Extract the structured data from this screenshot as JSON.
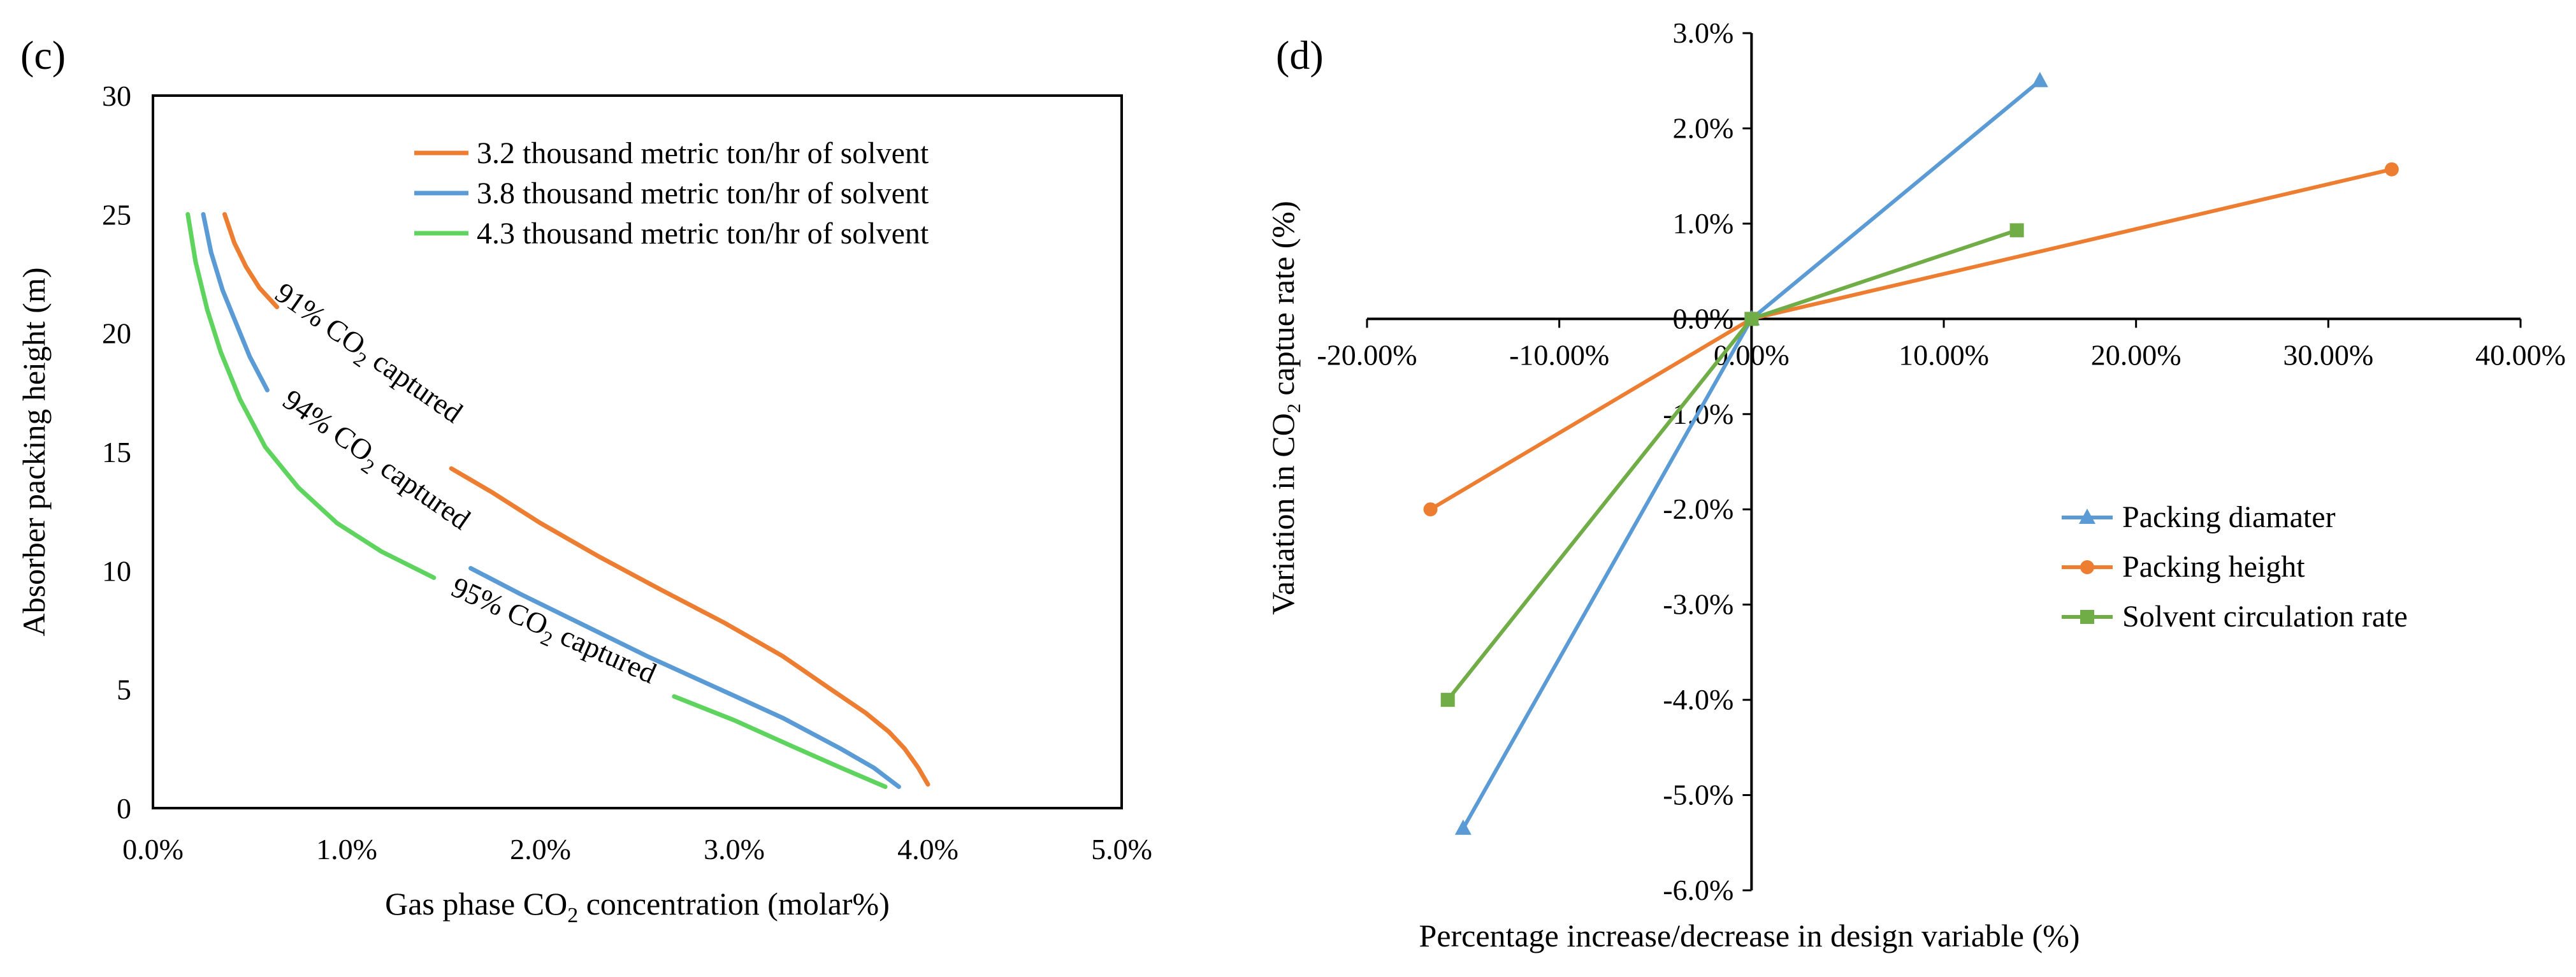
{
  "chart_data": [
    {
      "id": "c",
      "type": "line",
      "panel_label": "(c)",
      "xlabel_pre": "Gas phase CO",
      "xlabel_sub": "2",
      "xlabel_post": " concentration (molar%)",
      "ylabel": "Absorber packing height (m)",
      "xlim": [
        0,
        5
      ],
      "ylim": [
        0,
        30
      ],
      "x_ticks": [
        0,
        1,
        2,
        3,
        4,
        5
      ],
      "x_tick_labels": [
        "0.0%",
        "1.0%",
        "2.0%",
        "3.0%",
        "4.0%",
        "5.0%"
      ],
      "y_ticks": [
        0,
        5,
        10,
        15,
        20,
        25,
        30
      ],
      "y_tick_labels": [
        "0",
        "5",
        "10",
        "15",
        "20",
        "25",
        "30"
      ],
      "legend_position": "top-right",
      "series": [
        {
          "name": "3.2 thousand metric ton/hr of solvent",
          "color": "#ED7D31",
          "x": [
            0.37,
            0.42,
            0.48,
            0.55,
            0.64
          ],
          "y": [
            25.0,
            23.8,
            22.8,
            21.9,
            21.1
          ],
          "x2": [
            1.54,
            1.75,
            2.0,
            2.3,
            2.62,
            2.95,
            3.25,
            3.5,
            3.68,
            3.8,
            3.88,
            3.95,
            4.0
          ],
          "y2": [
            14.3,
            13.3,
            12.0,
            10.6,
            9.2,
            7.8,
            6.4,
            5.0,
            4.0,
            3.2,
            2.5,
            1.7,
            1.0
          ]
        },
        {
          "name": "3.8 thousand metric ton/hr of solvent",
          "color": "#5B9BD5",
          "x": [
            0.26,
            0.3,
            0.36,
            0.43,
            0.5,
            0.59
          ],
          "y": [
            25.0,
            23.4,
            21.8,
            20.4,
            19.0,
            17.6
          ],
          "x2": [
            1.64,
            1.9,
            2.2,
            2.55,
            2.9,
            3.25,
            3.55,
            3.72,
            3.85
          ],
          "y2": [
            10.1,
            9.0,
            7.8,
            6.4,
            5.1,
            3.8,
            2.5,
            1.7,
            0.9
          ]
        },
        {
          "name": "4.3 thousand metric ton/hr of solvent",
          "color": "#5ED35E",
          "x": [
            0.18,
            0.22,
            0.28,
            0.35,
            0.45,
            0.58,
            0.75,
            0.95,
            1.18,
            1.45
          ],
          "y": [
            25.0,
            23.0,
            21.0,
            19.2,
            17.2,
            15.2,
            13.5,
            12.0,
            10.8,
            9.7
          ],
          "x2": [
            2.69,
            3.0,
            3.3,
            3.55,
            3.78
          ],
          "y2": [
            4.7,
            3.7,
            2.6,
            1.7,
            0.9
          ]
        }
      ],
      "annotations": [
        {
          "pre": "91% CO",
          "sub": "2",
          "post": " captured",
          "x": 0.62,
          "y": 21.5,
          "angle": 35
        },
        {
          "pre": "94% CO",
          "sub": "2",
          "post": " captured",
          "x": 0.66,
          "y": 17.0,
          "angle": 35
        },
        {
          "pre": "95% CO",
          "sub": "2",
          "post": " captured",
          "x": 1.53,
          "y": 9.0,
          "angle": 24
        }
      ]
    },
    {
      "id": "d",
      "type": "line",
      "panel_label": "(d)",
      "xlabel": "Percentage increase/decrease in design variable (%)",
      "ylabel_pre": "Variation in CO",
      "ylabel_sub": "2",
      "ylabel_post": " captue rate (%)",
      "xlim": [
        -20,
        40
      ],
      "ylim": [
        -6,
        3
      ],
      "x_ticks": [
        -20,
        -10,
        0,
        10,
        20,
        30,
        40
      ],
      "x_tick_labels": [
        "-20.00%",
        "-10.00%",
        "0.00%",
        "10.00%",
        "20.00%",
        "30.00%",
        "40.00%"
      ],
      "y_ticks": [
        3,
        2,
        1,
        0,
        -1,
        -2,
        -3,
        -4,
        -5,
        -6
      ],
      "y_tick_labels": [
        "3.0%",
        "2.0%",
        "1.0%",
        "0.0%",
        "-1.0%",
        "-2.0%",
        "-3.0%",
        "-4.0%",
        "-5.0%",
        "-6.0%"
      ],
      "legend_position": "bottom-right",
      "series": [
        {
          "name": "Packing diamater",
          "color": "#5B9BD5",
          "marker": "triangle",
          "x": [
            -15.0,
            0,
            15.0
          ],
          "y": [
            -5.35,
            0,
            2.5
          ]
        },
        {
          "name": "Packing height",
          "color": "#ED7D31",
          "marker": "circle",
          "x": [
            -16.7,
            0,
            33.3
          ],
          "y": [
            -2.0,
            0,
            1.57
          ]
        },
        {
          "name": "Solvent circulation rate",
          "color": "#70AD47",
          "marker": "square",
          "x": [
            -15.8,
            0,
            13.8
          ],
          "y": [
            -4.0,
            0,
            0.93
          ]
        }
      ]
    }
  ]
}
